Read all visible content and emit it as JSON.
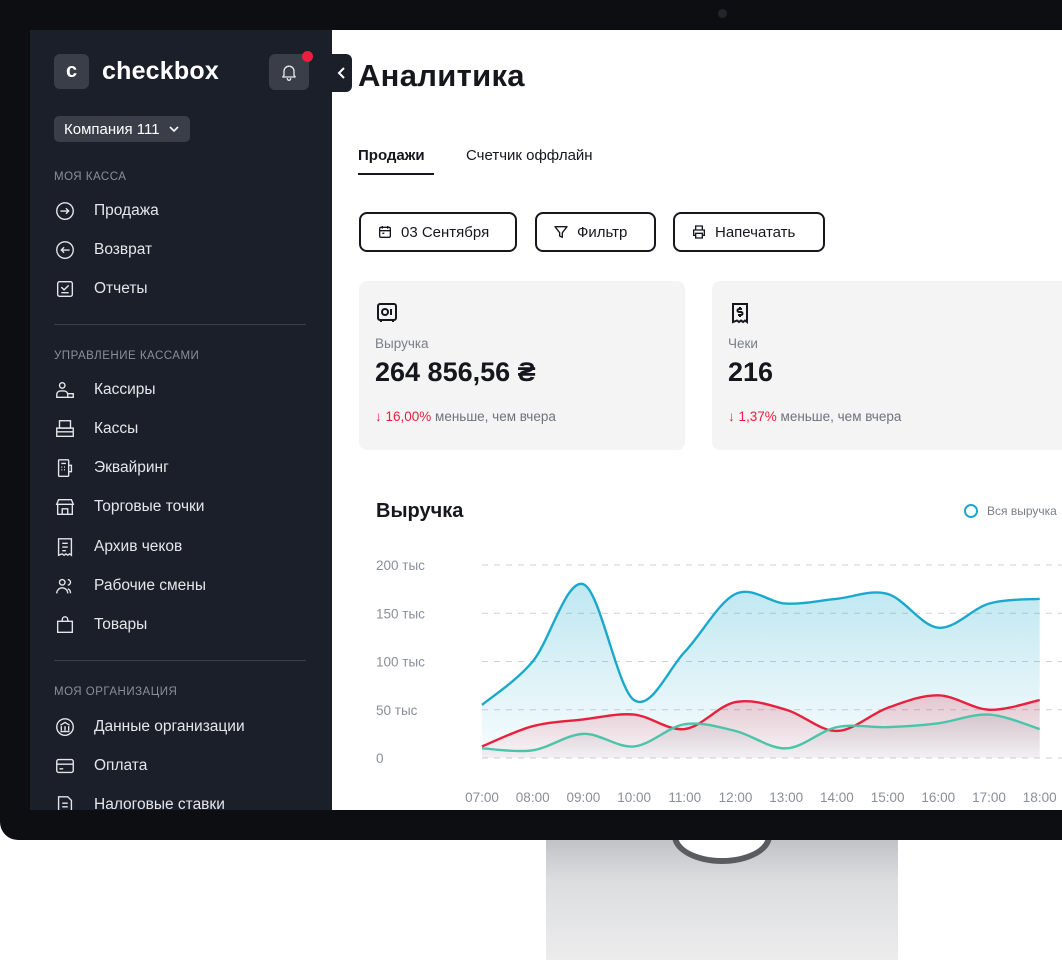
{
  "sidebar": {
    "logo_letter": "c",
    "logo_text": "checkbox",
    "company": "Компания 111",
    "sections": {
      "cash": "МОЯ КАССА",
      "management": "УПРАВЛЕНИЕ КАССАМИ",
      "organization": "МОЯ ОРГАНИЗАЦИЯ"
    },
    "items": {
      "sale": "Продажа",
      "return": "Возврат",
      "reports": "Отчеты",
      "cashiers": "Кассиры",
      "registers": "Кассы",
      "acquiring": "Эквайринг",
      "outlets": "Торговые точки",
      "archive": "Архив чеков",
      "shifts": "Рабочие смены",
      "goods": "Товары",
      "org_data": "Данные организации",
      "payment": "Оплата",
      "tax": "Налоговые ставки"
    }
  },
  "main": {
    "title": "Аналитика",
    "tabs": [
      "Продажи",
      "Счетчик оффлайн"
    ],
    "buttons": {
      "date": "03 Сентября",
      "filter": "Фильтр",
      "print": "Напечатать"
    },
    "cards": {
      "revenue": {
        "label": "Выручка",
        "value": "264 856,56 ₴",
        "delta": "↓ 16,00%",
        "delta_text": " меньше, чем вчера"
      },
      "checks": {
        "label": "Чеки",
        "value": "216",
        "delta": "↓ 1,37%",
        "delta_text": " меньше, чем вчера"
      }
    },
    "chart_title": "Выручка",
    "legend": "Вся выручка"
  },
  "colors": {
    "sidebar_bg": "#1b1f29",
    "accent_blue": "#1aa9cc",
    "accent_red": "#e8203d",
    "accent_teal": "#4cc4a9"
  },
  "chart_data": {
    "type": "area",
    "title": "Выручка",
    "x": [
      "07:00",
      "08:00",
      "09:00",
      "10:00",
      "11:00",
      "12:00",
      "13:00",
      "14:00",
      "15:00",
      "16:00",
      "17:00",
      "18:00"
    ],
    "y_ticks": [
      "200 тыс",
      "150 тыс",
      "100 тыс",
      "50 тыс",
      "0"
    ],
    "ylim": [
      0,
      200000
    ],
    "grid": true,
    "legend_position": "top-right",
    "series": [
      {
        "name": "Вся выручка",
        "values": [
          55000,
          100000,
          180000,
          60000,
          110000,
          170000,
          160000,
          165000,
          170000,
          135000,
          160000,
          165000
        ]
      },
      {
        "values": [
          12000,
          33000,
          40000,
          45000,
          30000,
          58000,
          50000,
          28000,
          52000,
          65000,
          50000,
          60000
        ]
      },
      {
        "values": [
          10000,
          8000,
          25000,
          12000,
          35000,
          28000,
          10000,
          32000,
          32000,
          36000,
          45000,
          30000
        ]
      }
    ]
  }
}
